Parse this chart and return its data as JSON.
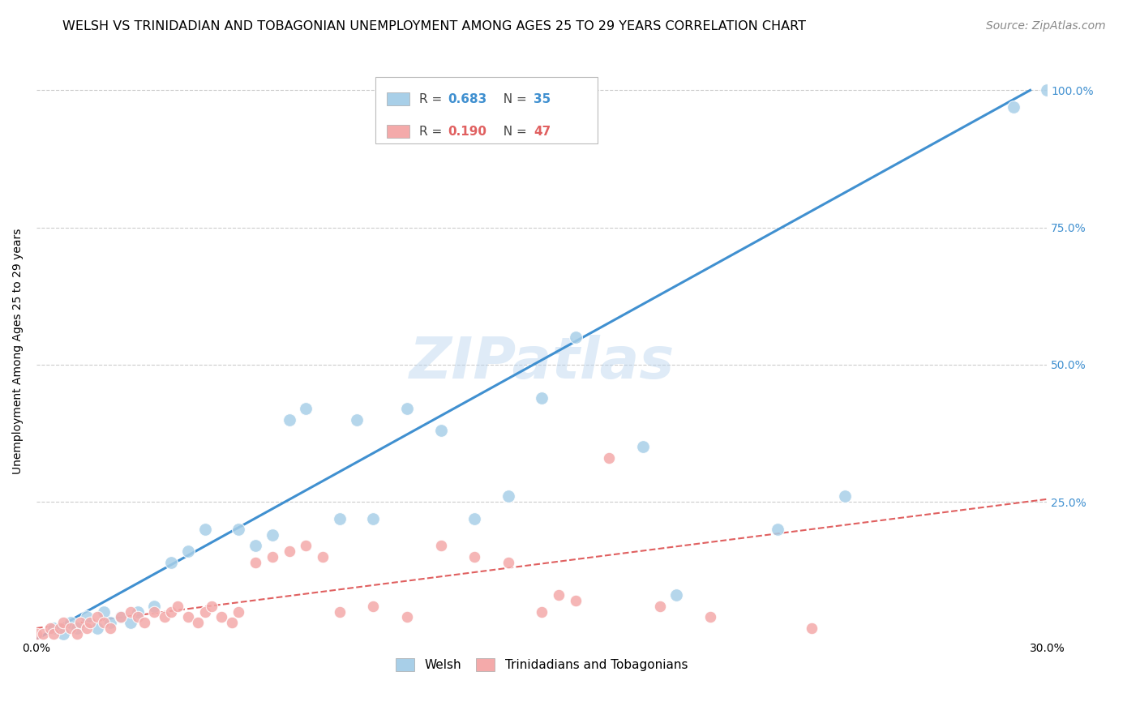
{
  "title": "WELSH VS TRINIDADIAN AND TOBAGONIAN UNEMPLOYMENT AMONG AGES 25 TO 29 YEARS CORRELATION CHART",
  "source": "Source: ZipAtlas.com",
  "ylabel": "Unemployment Among Ages 25 to 29 years",
  "xlim": [
    0.0,
    0.3
  ],
  "ylim": [
    0.0,
    1.05
  ],
  "yticks": [
    0.25,
    0.5,
    0.75,
    1.0
  ],
  "ytick_labels": [
    "25.0%",
    "50.0%",
    "75.0%",
    "100.0%"
  ],
  "xticks": [
    0.0,
    0.05,
    0.1,
    0.15,
    0.2,
    0.25,
    0.3
  ],
  "xtick_labels": [
    "0.0%",
    "",
    "",
    "",
    "",
    "",
    "30.0%"
  ],
  "welsh_color": "#a8cfe8",
  "tnt_color": "#f4aaaa",
  "tnt_line_color": "#e06060",
  "welsh_line_color": "#4090d0",
  "legend_R_welsh": "0.683",
  "legend_N_welsh": "35",
  "legend_R_tnt": "0.190",
  "legend_N_tnt": "47",
  "welsh_scatter_x": [
    0.005,
    0.008,
    0.01,
    0.012,
    0.015,
    0.018,
    0.02,
    0.022,
    0.025,
    0.028,
    0.03,
    0.035,
    0.04,
    0.045,
    0.05,
    0.06,
    0.065,
    0.07,
    0.075,
    0.08,
    0.09,
    0.095,
    0.1,
    0.11,
    0.12,
    0.13,
    0.14,
    0.15,
    0.16,
    0.18,
    0.19,
    0.22,
    0.24,
    0.29,
    0.3
  ],
  "welsh_scatter_y": [
    0.02,
    0.01,
    0.03,
    0.02,
    0.04,
    0.02,
    0.05,
    0.03,
    0.04,
    0.03,
    0.05,
    0.06,
    0.14,
    0.16,
    0.2,
    0.2,
    0.17,
    0.19,
    0.4,
    0.42,
    0.22,
    0.4,
    0.22,
    0.42,
    0.38,
    0.22,
    0.26,
    0.44,
    0.55,
    0.35,
    0.08,
    0.2,
    0.26,
    0.97,
    1.0
  ],
  "tnt_scatter_x": [
    0.0,
    0.002,
    0.004,
    0.005,
    0.007,
    0.008,
    0.01,
    0.012,
    0.013,
    0.015,
    0.016,
    0.018,
    0.02,
    0.022,
    0.025,
    0.028,
    0.03,
    0.032,
    0.035,
    0.038,
    0.04,
    0.042,
    0.045,
    0.048,
    0.05,
    0.052,
    0.055,
    0.058,
    0.06,
    0.065,
    0.07,
    0.075,
    0.08,
    0.085,
    0.09,
    0.1,
    0.11,
    0.12,
    0.13,
    0.14,
    0.15,
    0.155,
    0.16,
    0.17,
    0.185,
    0.2,
    0.23
  ],
  "tnt_scatter_y": [
    0.01,
    0.01,
    0.02,
    0.01,
    0.02,
    0.03,
    0.02,
    0.01,
    0.03,
    0.02,
    0.03,
    0.04,
    0.03,
    0.02,
    0.04,
    0.05,
    0.04,
    0.03,
    0.05,
    0.04,
    0.05,
    0.06,
    0.04,
    0.03,
    0.05,
    0.06,
    0.04,
    0.03,
    0.05,
    0.14,
    0.15,
    0.16,
    0.17,
    0.15,
    0.05,
    0.06,
    0.04,
    0.17,
    0.15,
    0.14,
    0.05,
    0.08,
    0.07,
    0.33,
    0.06,
    0.04,
    0.02
  ],
  "welsh_line_x0": 0.0,
  "welsh_line_y0": 0.0,
  "welsh_line_x1": 0.295,
  "welsh_line_y1": 1.0,
  "tnt_line_x0": 0.0,
  "tnt_line_y0": 0.02,
  "tnt_line_x1": 0.3,
  "tnt_line_y1": 0.255,
  "watermark": "ZIPatlas",
  "background_color": "#ffffff",
  "grid_color": "#cccccc",
  "title_fontsize": 11.5,
  "axis_label_fontsize": 10,
  "tick_fontsize": 10,
  "legend_fontsize": 11,
  "source_fontsize": 10
}
